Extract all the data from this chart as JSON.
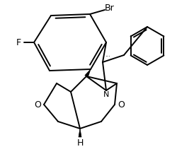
{
  "bg_color": "#ffffff",
  "line_color": "#000000",
  "figsize": [
    2.5,
    2.18
  ],
  "dpi": 100,
  "lw": 1.4,
  "label_F": "F",
  "label_Br": "Br",
  "label_N": "N",
  "label_O1": "O",
  "label_O2": "O",
  "label_H": "H"
}
